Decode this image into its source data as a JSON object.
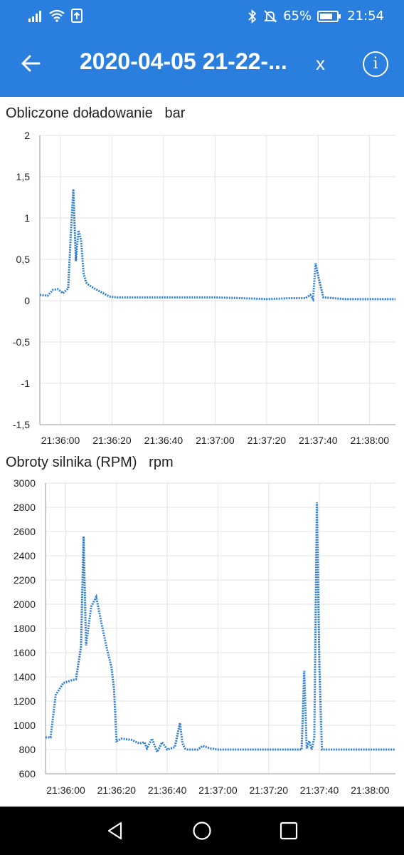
{
  "status": {
    "battery": "65%",
    "time": "21:54",
    "icons": [
      "signal-icon",
      "wifi-icon",
      "upload-icon",
      "bluetooth-icon",
      "mute-bell-icon",
      "battery-icon"
    ]
  },
  "appbar": {
    "title": "2020-04-05 21-22-...",
    "close": "x",
    "info": "i"
  },
  "colors": {
    "accent": "#2a7fde",
    "series": "#2e7fd6"
  },
  "charts": {
    "boost": {
      "title": "Obliczone doładowanie",
      "unit": "bar"
    },
    "rpm": {
      "title": "Obroty silnika (RPM)",
      "unit": "rpm"
    }
  },
  "chart_data": [
    {
      "type": "line",
      "title": "Obliczone doładowanie",
      "ylabel": "bar",
      "ylim": [
        -1.5,
        2
      ],
      "yticks": [
        "2",
        "1,5",
        "1",
        "0,5",
        "0",
        "-0,5",
        "-1",
        "-1,5"
      ],
      "xticks": [
        "21:36:00",
        "21:36:20",
        "21:36:40",
        "21:37:00",
        "21:37:20",
        "21:37:40",
        "21:38:00"
      ],
      "xlim": [
        "21:35:52",
        "21:38:10"
      ],
      "series": [
        {
          "x": [
            "21:35:52",
            "21:35:55",
            "21:35:57",
            "21:35:59",
            "21:36:01",
            "21:36:03",
            "21:36:04",
            "21:36:05",
            "21:36:06",
            "21:36:07",
            "21:36:08",
            "21:36:09",
            "21:36:10",
            "21:36:11",
            "21:36:13",
            "21:36:16",
            "21:36:19",
            "21:36:22",
            "21:36:30",
            "21:36:40",
            "21:36:50",
            "21:37:00",
            "21:37:10",
            "21:37:20",
            "21:37:30",
            "21:37:35",
            "21:37:37",
            "21:37:38",
            "21:37:39",
            "21:37:40",
            "21:37:42",
            "21:37:50",
            "21:38:00",
            "21:38:10"
          ],
          "y": [
            0.07,
            0.06,
            0.13,
            0.14,
            0.09,
            0.15,
            0.8,
            1.35,
            0.48,
            0.85,
            0.73,
            0.32,
            0.22,
            0.19,
            0.15,
            0.1,
            0.05,
            0.04,
            0.04,
            0.04,
            0.04,
            0.04,
            0.03,
            0.02,
            0.03,
            0.03,
            0.07,
            0.02,
            0.45,
            0.3,
            0.04,
            0.02,
            0.02,
            0.02
          ]
        }
      ]
    },
    {
      "type": "line",
      "title": "Obroty silnika (RPM)",
      "ylabel": "rpm",
      "ylim": [
        600,
        3000
      ],
      "yticks": [
        "3000",
        "2800",
        "2600",
        "2400",
        "2200",
        "2000",
        "1800",
        "1600",
        "1400",
        "1200",
        "1000",
        "800",
        "600"
      ],
      "xticks": [
        "21:36:00",
        "21:36:20",
        "21:36:40",
        "21:37:00",
        "21:37:20",
        "21:37:40",
        "21:38:00"
      ],
      "xlim": [
        "21:35:52",
        "21:38:10"
      ],
      "series": [
        {
          "x": [
            "21:35:52",
            "21:35:54",
            "21:35:56",
            "21:35:59",
            "21:36:02",
            "21:36:04",
            "21:36:06",
            "21:36:07",
            "21:36:08",
            "21:36:10",
            "21:36:12",
            "21:36:14",
            "21:36:16",
            "21:36:18",
            "21:36:19",
            "21:36:20",
            "21:36:22",
            "21:36:26",
            "21:36:29",
            "21:36:31",
            "21:36:32",
            "21:36:34",
            "21:36:36",
            "21:36:38",
            "21:36:40",
            "21:36:43",
            "21:36:45",
            "21:36:46",
            "21:36:47",
            "21:36:48",
            "21:36:50",
            "21:36:52",
            "21:36:54",
            "21:36:57",
            "21:37:00",
            "21:37:10",
            "21:37:20",
            "21:37:30",
            "21:37:33",
            "21:37:34",
            "21:37:35",
            "21:37:36",
            "21:37:37",
            "21:37:38",
            "21:37:39",
            "21:37:40",
            "21:37:41",
            "21:37:42",
            "21:37:44",
            "21:37:50",
            "21:38:00",
            "21:38:10"
          ],
          "y": [
            900,
            900,
            1250,
            1350,
            1370,
            1380,
            1650,
            2560,
            1660,
            1980,
            2060,
            1850,
            1650,
            1480,
            1300,
            870,
            890,
            880,
            850,
            860,
            810,
            890,
            780,
            860,
            800,
            820,
            1020,
            850,
            810,
            800,
            800,
            800,
            830,
            810,
            800,
            800,
            800,
            800,
            800,
            1450,
            810,
            870,
            800,
            900,
            2840,
            1500,
            800,
            800,
            800,
            800,
            800,
            800
          ]
        }
      ]
    }
  ]
}
